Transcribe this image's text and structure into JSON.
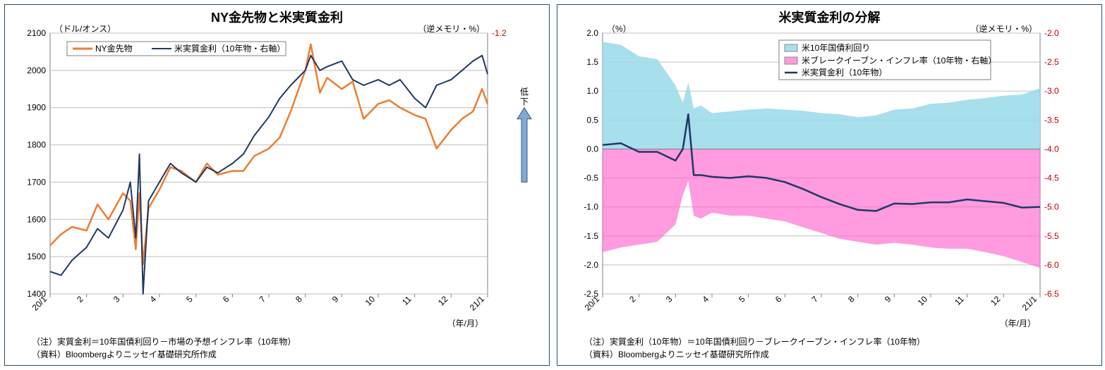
{
  "left": {
    "title": "NY金先物と米実質金利",
    "unit_left": "（ドル/オンス）",
    "unit_right": "（逆メモリ・%）",
    "axis_bottom_label": "（年/月）",
    "arrow_label_top": "低",
    "arrow_label_bottom": "下",
    "footnote1": "（注）実質金利＝10年国債利回り－市場の予想インフレ率（10年物）",
    "footnote2": "（資料）Bloombergよりニッセイ基礎研究所作成",
    "legend": {
      "gold": "NY金先物",
      "real": "米実質金利（10年物・右軸）"
    },
    "y_left": {
      "min": 1400,
      "max": 2100,
      "step": 100,
      "color": "#000000"
    },
    "y_right": {
      "min": 0.2,
      "max": -1.2,
      "step": -0.2,
      "color": "#c00000"
    },
    "x_labels": [
      "20/1",
      "2",
      "3",
      "4",
      "5",
      "6",
      "7",
      "8",
      "9",
      "10",
      "11",
      "12",
      "21/1"
    ],
    "series": {
      "gold": {
        "color": "#ed7d31",
        "width": 2.5,
        "points": [
          [
            0,
            1530
          ],
          [
            0.3,
            1560
          ],
          [
            0.6,
            1580
          ],
          [
            1.0,
            1570
          ],
          [
            1.3,
            1640
          ],
          [
            1.6,
            1600
          ],
          [
            2.0,
            1670
          ],
          [
            2.2,
            1650
          ],
          [
            2.35,
            1520
          ],
          [
            2.45,
            1670
          ],
          [
            2.55,
            1480
          ],
          [
            2.7,
            1630
          ],
          [
            3.0,
            1680
          ],
          [
            3.3,
            1740
          ],
          [
            3.6,
            1730
          ],
          [
            4.0,
            1700
          ],
          [
            4.3,
            1750
          ],
          [
            4.6,
            1720
          ],
          [
            5.0,
            1730
          ],
          [
            5.3,
            1730
          ],
          [
            5.6,
            1770
          ],
          [
            6.0,
            1790
          ],
          [
            6.3,
            1820
          ],
          [
            6.6,
            1890
          ],
          [
            7.0,
            2000
          ],
          [
            7.15,
            2070
          ],
          [
            7.4,
            1940
          ],
          [
            7.6,
            1980
          ],
          [
            8.0,
            1950
          ],
          [
            8.3,
            1970
          ],
          [
            8.6,
            1870
          ],
          [
            9.0,
            1910
          ],
          [
            9.3,
            1920
          ],
          [
            9.6,
            1900
          ],
          [
            10.0,
            1880
          ],
          [
            10.3,
            1870
          ],
          [
            10.6,
            1790
          ],
          [
            11.0,
            1840
          ],
          [
            11.3,
            1870
          ],
          [
            11.6,
            1890
          ],
          [
            11.85,
            1950
          ],
          [
            12.0,
            1910
          ]
        ]
      },
      "real": {
        "color": "#1f3864",
        "width": 2,
        "points": [
          [
            0,
            0.08
          ],
          [
            0.3,
            0.1
          ],
          [
            0.6,
            0.02
          ],
          [
            1.0,
            -0.05
          ],
          [
            1.3,
            -0.15
          ],
          [
            1.6,
            -0.1
          ],
          [
            2.0,
            -0.25
          ],
          [
            2.2,
            -0.4
          ],
          [
            2.35,
            -0.1
          ],
          [
            2.45,
            -0.55
          ],
          [
            2.55,
            0.2
          ],
          [
            2.7,
            -0.3
          ],
          [
            3.0,
            -0.4
          ],
          [
            3.3,
            -0.5
          ],
          [
            3.6,
            -0.45
          ],
          [
            4.0,
            -0.4
          ],
          [
            4.3,
            -0.48
          ],
          [
            4.6,
            -0.45
          ],
          [
            5.0,
            -0.5
          ],
          [
            5.3,
            -0.55
          ],
          [
            5.6,
            -0.65
          ],
          [
            6.0,
            -0.75
          ],
          [
            6.3,
            -0.85
          ],
          [
            6.6,
            -0.92
          ],
          [
            7.0,
            -1.0
          ],
          [
            7.15,
            -1.08
          ],
          [
            7.4,
            -1.0
          ],
          [
            7.6,
            -1.02
          ],
          [
            8.0,
            -1.05
          ],
          [
            8.3,
            -0.95
          ],
          [
            8.6,
            -0.92
          ],
          [
            9.0,
            -0.95
          ],
          [
            9.3,
            -0.92
          ],
          [
            9.6,
            -0.95
          ],
          [
            10.0,
            -0.85
          ],
          [
            10.3,
            -0.8
          ],
          [
            10.6,
            -0.92
          ],
          [
            11.0,
            -0.95
          ],
          [
            11.3,
            -1.0
          ],
          [
            11.6,
            -1.05
          ],
          [
            11.85,
            -1.08
          ],
          [
            12.0,
            -0.98
          ]
        ]
      }
    },
    "plot_bg": "#ffffff",
    "grid_color": "#bfbfbf",
    "tick_color": "#808080"
  },
  "right": {
    "title": "米実質金利の分解",
    "unit_left": "（%）",
    "unit_right": "（逆メモリ・%）",
    "axis_bottom_label": "（年/月）",
    "footnote1": "（注）実質金利（10年物）＝10年国債利回り－ブレークイーブン・インフレ率（10年物）",
    "footnote2": "（資料）Bloombergよりニッセイ基礎研究所作成",
    "legend": {
      "yield": "米10年国債利回り",
      "bei": "米ブレークイーブン・インフレ率（10年物・右軸）",
      "real": "米実質金利（10年物）"
    },
    "y_left": {
      "min": -2.5,
      "max": 2.0,
      "step": 0.5,
      "color": "#000000"
    },
    "y_right": {
      "min": 2.5,
      "max": -2.0,
      "step": -0.5,
      "color": "#c00000"
    },
    "x_labels": [
      "20/1",
      "2",
      "3",
      "4",
      "5",
      "6",
      "7",
      "8",
      "9",
      "10",
      "11",
      "12",
      "21/1"
    ],
    "yield_area": {
      "color": "#99d9ea",
      "opacity": 0.85,
      "points": [
        [
          0,
          1.85
        ],
        [
          0.5,
          1.8
        ],
        [
          1.0,
          1.6
        ],
        [
          1.5,
          1.55
        ],
        [
          2.0,
          1.1
        ],
        [
          2.2,
          0.8
        ],
        [
          2.35,
          1.15
        ],
        [
          2.5,
          0.7
        ],
        [
          2.7,
          0.75
        ],
        [
          3.0,
          0.62
        ],
        [
          3.5,
          0.65
        ],
        [
          4.0,
          0.68
        ],
        [
          4.5,
          0.7
        ],
        [
          5.0,
          0.68
        ],
        [
          5.5,
          0.66
        ],
        [
          6.0,
          0.62
        ],
        [
          6.5,
          0.6
        ],
        [
          7.0,
          0.55
        ],
        [
          7.5,
          0.58
        ],
        [
          8.0,
          0.68
        ],
        [
          8.5,
          0.7
        ],
        [
          9.0,
          0.78
        ],
        [
          9.5,
          0.8
        ],
        [
          10.0,
          0.85
        ],
        [
          10.5,
          0.88
        ],
        [
          11.0,
          0.92
        ],
        [
          11.5,
          0.94
        ],
        [
          12.0,
          1.05
        ]
      ]
    },
    "bei_area": {
      "color": "#ff66cc",
      "opacity": 0.65,
      "points": [
        [
          0,
          -1.78
        ],
        [
          0.5,
          -1.7
        ],
        [
          1.0,
          -1.65
        ],
        [
          1.5,
          -1.6
        ],
        [
          2.0,
          -1.3
        ],
        [
          2.2,
          -0.8
        ],
        [
          2.35,
          -0.55
        ],
        [
          2.5,
          -1.15
        ],
        [
          2.7,
          -1.2
        ],
        [
          3.0,
          -1.1
        ],
        [
          3.5,
          -1.15
        ],
        [
          4.0,
          -1.15
        ],
        [
          4.5,
          -1.2
        ],
        [
          5.0,
          -1.25
        ],
        [
          5.5,
          -1.35
        ],
        [
          6.0,
          -1.45
        ],
        [
          6.5,
          -1.55
        ],
        [
          7.0,
          -1.6
        ],
        [
          7.5,
          -1.65
        ],
        [
          8.0,
          -1.62
        ],
        [
          8.5,
          -1.65
        ],
        [
          9.0,
          -1.7
        ],
        [
          9.5,
          -1.72
        ],
        [
          10.0,
          -1.72
        ],
        [
          10.5,
          -1.78
        ],
        [
          11.0,
          -1.85
        ],
        [
          11.5,
          -1.95
        ],
        [
          12.0,
          -2.05
        ]
      ]
    },
    "real_line": {
      "color": "#1f3864",
      "width": 2.5,
      "points": [
        [
          0,
          0.07
        ],
        [
          0.5,
          0.1
        ],
        [
          1.0,
          -0.05
        ],
        [
          1.5,
          -0.05
        ],
        [
          2.0,
          -0.2
        ],
        [
          2.2,
          0.0
        ],
        [
          2.35,
          0.6
        ],
        [
          2.5,
          -0.45
        ],
        [
          2.7,
          -0.45
        ],
        [
          3.0,
          -0.48
        ],
        [
          3.5,
          -0.5
        ],
        [
          4.0,
          -0.47
        ],
        [
          4.5,
          -0.5
        ],
        [
          5.0,
          -0.57
        ],
        [
          5.5,
          -0.69
        ],
        [
          6.0,
          -0.83
        ],
        [
          6.5,
          -0.95
        ],
        [
          7.0,
          -1.05
        ],
        [
          7.5,
          -1.07
        ],
        [
          8.0,
          -0.94
        ],
        [
          8.5,
          -0.95
        ],
        [
          9.0,
          -0.92
        ],
        [
          9.5,
          -0.92
        ],
        [
          10.0,
          -0.87
        ],
        [
          10.5,
          -0.9
        ],
        [
          11.0,
          -0.93
        ],
        [
          11.5,
          -1.01
        ],
        [
          12.0,
          -1.0
        ]
      ]
    },
    "plot_bg": "#ffffff",
    "grid_color": "#bfbfbf",
    "tick_color": "#808080"
  }
}
